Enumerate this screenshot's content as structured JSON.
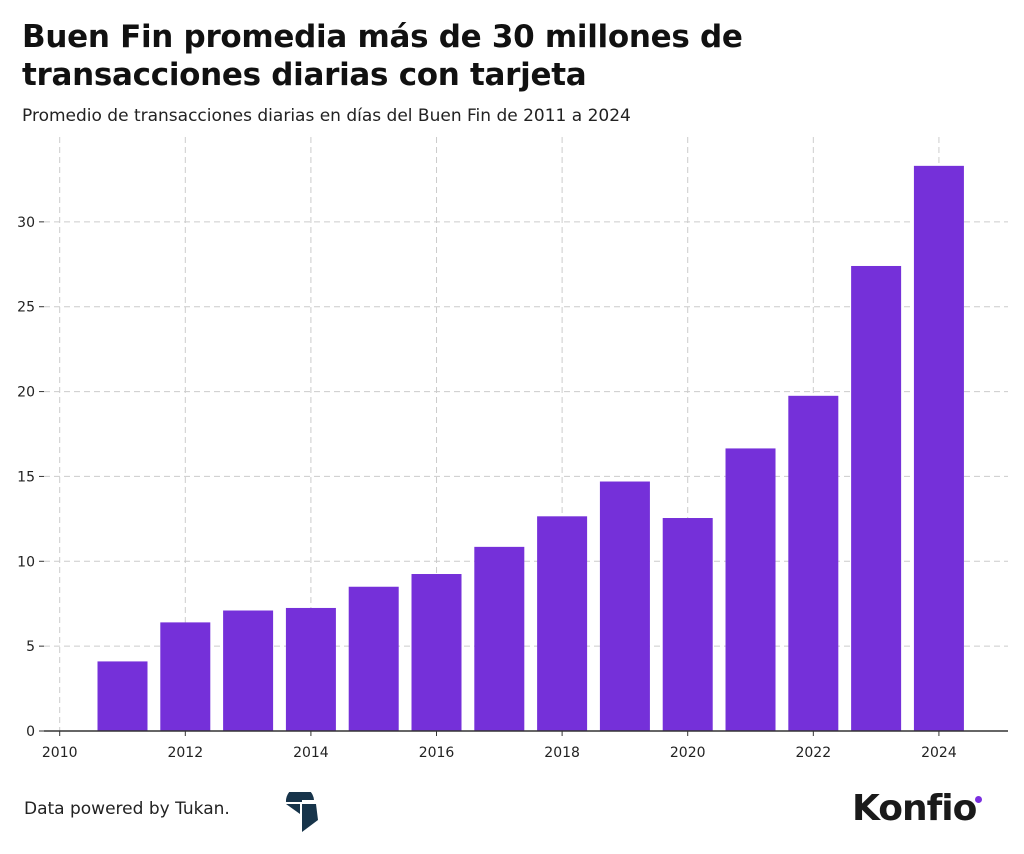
{
  "header": {
    "title": "Buen Fin promedia más de 30 millones de transacciones diarias con tarjeta",
    "subtitle": "Promedio de transacciones diarias en días del Buen Fin de 2011 a 2024"
  },
  "footer": {
    "credit": "Data powered by Tukan.",
    "brand": "Konfio"
  },
  "chart_data": {
    "type": "bar",
    "title": "Buen Fin promedia más de 30 millones de transacciones diarias con tarjeta",
    "subtitle": "Promedio de transacciones diarias en días del Buen Fin de 2011 a 2024",
    "x": [
      2011,
      2012,
      2013,
      2014,
      2015,
      2016,
      2017,
      2018,
      2019,
      2020,
      2021,
      2022,
      2023,
      2024
    ],
    "values": [
      4.1,
      6.4,
      7.1,
      7.25,
      8.5,
      9.25,
      10.85,
      12.65,
      14.7,
      12.55,
      16.65,
      19.75,
      27.4,
      33.3
    ],
    "xticks": [
      "2010",
      "2012",
      "2014",
      "2016",
      "2018",
      "2020",
      "2022",
      "2024"
    ],
    "yticks": [
      "0",
      "5",
      "10",
      "15",
      "20",
      "25",
      "30"
    ],
    "xlim": [
      2009.75,
      2025.1
    ],
    "ylim": [
      0,
      35
    ],
    "grid": true,
    "bar_color": "#7530d9"
  }
}
